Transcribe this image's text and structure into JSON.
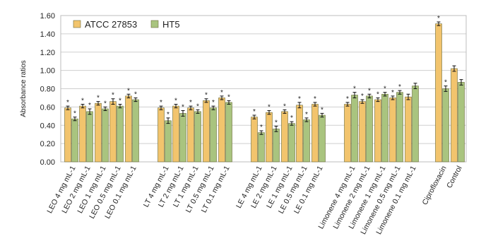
{
  "chart_data": {
    "type": "bar",
    "ylabel": "Absorbance ratios",
    "xlabel": "",
    "ylim": [
      0,
      1.6
    ],
    "yticks": [
      "0.00",
      "0.20",
      "0.40",
      "0.60",
      "0.80",
      "1.00",
      "1.20",
      "1.40",
      "1.60"
    ],
    "grid": true,
    "legend_position": "top-left",
    "categories": [
      "LEO 4 mg mL-1",
      "LEO 2 mg mL-1",
      "LEO 1 mg mL-1",
      "LEO 0.5 mg mL-1",
      "LEO 0.1 mg mL-1",
      "LT 4 mg mL-1",
      "LT 2 mg mL-1",
      "LT 1 mg mL-1",
      "LT 0.5 mg mL-1",
      "LT 0.1 mg mL-1",
      "LE 4 mg mL-1",
      "LE 2 mg mL-1",
      "LE 1 mg mL-1",
      "LE 0.5 mg mL-1",
      "LE 0.1 mg mL-1",
      "Limonene 4 mg mL-1",
      "Limonene 2 mg mL-1",
      "Limonene 1 mg mL-1",
      "Limonene 0.5 mg mL-1",
      "Limonene 0.1 mg mL-1",
      "Ciprofloxacin",
      "Control"
    ],
    "series": [
      {
        "name": "ATCC 27853",
        "color": "#f2c46d",
        "values": [
          0.59,
          0.61,
          0.64,
          0.66,
          0.72,
          0.59,
          0.61,
          0.59,
          0.67,
          0.7,
          0.49,
          0.54,
          0.55,
          0.62,
          0.63,
          0.63,
          0.66,
          0.68,
          0.7,
          0.71,
          1.51,
          1.02
        ],
        "significant": [
          true,
          true,
          true,
          true,
          true,
          true,
          true,
          true,
          true,
          true,
          true,
          true,
          true,
          true,
          true,
          true,
          true,
          true,
          true,
          false,
          true,
          false
        ]
      },
      {
        "name": "HT5",
        "color": "#a9c47f",
        "values": [
          0.47,
          0.55,
          0.58,
          0.61,
          0.68,
          0.45,
          0.53,
          0.55,
          0.59,
          0.65,
          0.32,
          0.36,
          0.42,
          0.46,
          0.51,
          0.73,
          0.72,
          0.74,
          0.76,
          0.83,
          0.8,
          0.87
        ],
        "significant": [
          true,
          true,
          true,
          true,
          true,
          true,
          true,
          true,
          true,
          true,
          true,
          true,
          true,
          true,
          true,
          true,
          true,
          true,
          true,
          false,
          true,
          false
        ]
      }
    ],
    "error": [
      [
        0.02,
        0.02,
        0.02,
        0.03,
        0.02,
        0.02,
        0.02,
        0.02,
        0.02,
        0.02,
        0.02,
        0.02,
        0.02,
        0.03,
        0.02,
        0.02,
        0.02,
        0.02,
        0.02,
        0.03,
        0.02,
        0.03
      ],
      [
        0.02,
        0.03,
        0.02,
        0.02,
        0.02,
        0.03,
        0.03,
        0.02,
        0.02,
        0.02,
        0.02,
        0.03,
        0.02,
        0.02,
        0.02,
        0.03,
        0.02,
        0.02,
        0.02,
        0.03,
        0.03,
        0.03
      ]
    ],
    "significance_marker": "*"
  }
}
